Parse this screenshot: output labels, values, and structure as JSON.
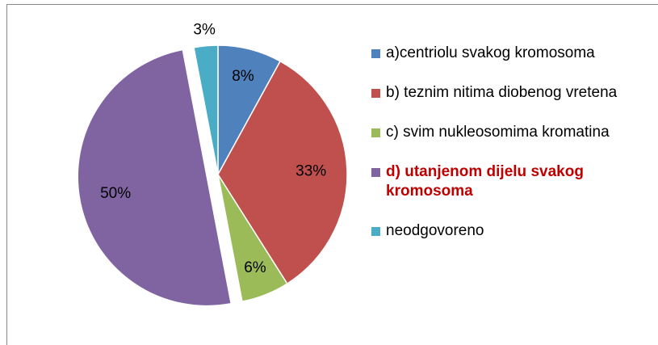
{
  "chart_data": {
    "type": "pie",
    "categories": [
      "a)centriolu svakog kromosoma",
      "b) teznim nitima diobenog vretena",
      "c) svim nukleosomima kromatina",
      "d) utanjenom dijelu svakog kromosoma",
      "neodgovoreno"
    ],
    "values": [
      8,
      33,
      6,
      50,
      3
    ],
    "value_labels": [
      "8%",
      "33%",
      "6%",
      "50%",
      "3%"
    ],
    "colors": [
      "#4f81bd",
      "#c0504d",
      "#9bbb59",
      "#8064a2",
      "#4bacc6"
    ],
    "exploded": [
      3
    ],
    "highlighted": [
      3
    ],
    "highlight_color": "#c00000",
    "legend": "right"
  }
}
